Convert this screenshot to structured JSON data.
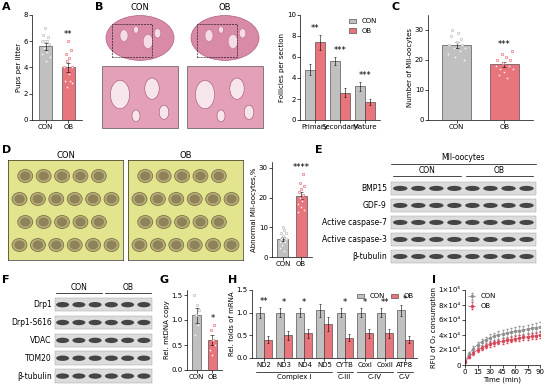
{
  "chart_data": [
    {
      "panel": "A",
      "type": "bar",
      "categories": [
        "CON",
        "OB"
      ],
      "values": [
        5.6,
        4.0
      ],
      "errors": [
        0.25,
        0.35
      ],
      "points": [
        [
          5,
          6,
          6.5,
          5.5,
          7,
          6,
          4.5,
          6,
          5.2,
          6.3,
          5.8,
          4.8
        ],
        [
          4,
          3,
          5,
          2.5,
          4.5,
          6,
          3.5,
          4.7,
          3,
          5.3,
          4,
          2.8
        ]
      ],
      "colors": [
        "#c0c0c0",
        "#e8747c"
      ],
      "ylabel": "Pups per litter",
      "ylim": [
        0,
        8
      ],
      "yticks": [
        0,
        2,
        4,
        6,
        8
      ],
      "significance": [
        null,
        "**"
      ]
    },
    {
      "panel": "B",
      "type": "bar",
      "categories": [
        "Primary",
        "Secondary",
        "Mature"
      ],
      "series": [
        {
          "name": "CON",
          "color": "#c0c0c0",
          "values": [
            4.8,
            5.6,
            3.2
          ],
          "errors": [
            0.5,
            0.4,
            0.4
          ]
        },
        {
          "name": "OB",
          "color": "#e8747c",
          "values": [
            7.4,
            2.6,
            1.7
          ],
          "errors": [
            0.7,
            0.4,
            0.3
          ]
        }
      ],
      "ylabel": "Follicles per section",
      "ylim": [
        0,
        10
      ],
      "yticks": [
        0,
        2,
        4,
        6,
        8,
        10
      ],
      "significance": [
        "**",
        "***",
        "***"
      ],
      "legend": "upper right"
    },
    {
      "panel": "C",
      "type": "bar",
      "categories": [
        "CON",
        "OB"
      ],
      "values": [
        25,
        18.5
      ],
      "errors": [
        1.0,
        0.8
      ],
      "points": [
        [
          22,
          25,
          28,
          30,
          24,
          21,
          26,
          29,
          23,
          27,
          25,
          20,
          24
        ],
        [
          18,
          20,
          15,
          17,
          22,
          19,
          16,
          21,
          14,
          18,
          20,
          23,
          17
        ]
      ],
      "colors": [
        "#c0c0c0",
        "#e8747c"
      ],
      "ylabel": "Number of MII-oocytes",
      "ylim": [
        0,
        35
      ],
      "yticks": [
        0,
        10,
        20,
        30
      ],
      "significance": [
        null,
        "***"
      ]
    },
    {
      "panel": "D",
      "type": "bar",
      "categories": [
        "CON",
        "OB"
      ],
      "values": [
        6.1,
        20.7
      ],
      "errors": [
        0.8,
        1.1
      ],
      "points": [
        [
          3,
          5,
          8,
          6,
          4,
          10,
          7,
          2,
          9,
          5,
          6,
          8
        ],
        [
          15,
          18,
          22,
          25,
          20,
          17,
          23,
          19,
          28,
          21,
          16,
          24
        ]
      ],
      "colors": [
        "#c0c0c0",
        "#e8747c"
      ],
      "ylabel": "Abnormal MII-oocytes,%",
      "ylim": [
        0,
        32
      ],
      "yticks": [
        0,
        10,
        20,
        30
      ],
      "significance": [
        null,
        "****"
      ]
    },
    {
      "panel": "G",
      "type": "bar",
      "categories": [
        "CON",
        "OB"
      ],
      "values": [
        1.1,
        0.6
      ],
      "errors": [
        0.15,
        0.1
      ],
      "points": [
        [
          1.5,
          0.7,
          1.1,
          1.3,
          0.9,
          1.2
        ],
        [
          0.4,
          0.8,
          0.3,
          0.6,
          0.9,
          0.5
        ]
      ],
      "colors": [
        "#c0c0c0",
        "#e8747c"
      ],
      "ylabel": "Rel. mtDNA copy",
      "ylim": [
        0,
        1.6
      ],
      "yticks": [
        {
          "value": 0,
          "label": "0.0"
        },
        0.5,
        1.0,
        1.5
      ],
      "significance": [
        null,
        "*"
      ]
    },
    {
      "panel": "H",
      "type": "bar",
      "categories": [
        "ND2",
        "ND3",
        "ND4",
        "ND5",
        "CYTB",
        "CoxI",
        "CoxII",
        "ATP8"
      ],
      "series": [
        {
          "name": "CON",
          "color": "#c0c0c0",
          "values": [
            1.0,
            1.0,
            1.0,
            1.05,
            1.0,
            1.0,
            1.0,
            1.05
          ],
          "errors": [
            0.12,
            0.1,
            0.1,
            0.15,
            0.1,
            0.1,
            0.1,
            0.12
          ]
        },
        {
          "name": "OB",
          "color": "#e8747c",
          "values": [
            0.4,
            0.5,
            0.55,
            0.75,
            0.45,
            0.55,
            0.55,
            0.4
          ],
          "errors": [
            0.08,
            0.1,
            0.1,
            0.15,
            0.08,
            0.1,
            0.1,
            0.08
          ]
        }
      ],
      "groups": [
        {
          "label": "Complex I",
          "categories": [
            "ND2",
            "ND3",
            "ND4",
            "ND5"
          ]
        },
        {
          "label": "C-III",
          "categories": [
            "CYTB"
          ]
        },
        {
          "label": "C-IV",
          "categories": [
            "CoxI",
            "CoxII"
          ]
        },
        {
          "label": "C-V",
          "categories": [
            "ATP8"
          ]
        }
      ],
      "ylabel": "Rel. folds of mRNA",
      "ylim": [
        0,
        1.5
      ],
      "yticks": [
        {
          "value": 0,
          "label": "0.0"
        },
        0.5,
        1.0,
        1.5
      ],
      "significance": [
        "**",
        "*",
        "*",
        null,
        "*",
        "*",
        "**",
        "*"
      ],
      "legend": "upper right"
    },
    {
      "panel": "I",
      "type": "line",
      "x": [
        0,
        5,
        10,
        15,
        20,
        25,
        30,
        35,
        40,
        45,
        50,
        55,
        60,
        65,
        70,
        75,
        80,
        85,
        90
      ],
      "series": [
        {
          "name": "CON",
          "color": "#909090",
          "marker": "o",
          "values": [
            5000,
            15000,
            22000,
            27000,
            31000,
            34000,
            36500,
            38500,
            40000,
            41500,
            43000,
            44000,
            45000,
            46000,
            47000,
            48000,
            49000,
            50000,
            51000
          ],
          "errors": [
            1000,
            2000,
            3000,
            3500,
            4000,
            4000,
            4500,
            4500,
            5000,
            5000,
            5000,
            5000,
            5500,
            5500,
            5500,
            5500,
            6000,
            6000,
            6000
          ]
        },
        {
          "name": "OB",
          "color": "#d9485a",
          "marker": "o",
          "values": [
            4000,
            11000,
            16000,
            20000,
            23000,
            25500,
            27500,
            29000,
            30500,
            32000,
            33000,
            34000,
            35000,
            36000,
            36800,
            37500,
            38200,
            39000,
            40000
          ],
          "errors": [
            800,
            1500,
            2000,
            2500,
            2500,
            3000,
            3000,
            3000,
            3000,
            3500,
            3500,
            3500,
            3500,
            3500,
            3500,
            4000,
            4000,
            4000,
            4000
          ]
        }
      ],
      "xlabel": "Time (min)",
      "ylabel": "RFU of O₂ consumption",
      "xlim": [
        0,
        90
      ],
      "xticks": [
        0,
        15,
        30,
        45,
        60,
        75,
        90
      ],
      "ylim": [
        0,
        100000
      ],
      "yticks": [
        0,
        {
          "value": 20000,
          "label": "2×10⁴"
        },
        {
          "value": 40000,
          "label": "4×10⁴"
        },
        {
          "value": 60000,
          "label": "6×10⁴"
        },
        {
          "value": 80000,
          "label": "8×10⁴"
        },
        {
          "value": 100000,
          "label": "1×10⁵"
        }
      ],
      "legend": "upper left"
    }
  ],
  "images": [
    {
      "panel": "B",
      "kind": "histology",
      "labels": [
        "CON",
        "OB"
      ]
    },
    {
      "panel": "D",
      "kind": "oocytes",
      "labels": [
        "CON",
        "OB"
      ]
    }
  ],
  "blots": [
    {
      "panel": "E",
      "header": "MII-oocytes",
      "groups": [
        "CON",
        "OB"
      ],
      "lanes_per_group": 4,
      "rows": [
        "BMP15",
        "GDF-9",
        "Active caspase-7",
        "Active caspase-3",
        "β-tubulin"
      ]
    },
    {
      "panel": "F",
      "groups": [
        "CON",
        "OB"
      ],
      "lanes_per_group": 3,
      "rows": [
        "Drp1",
        "Drp1-S616",
        "VDAC",
        "TOM20",
        "β-tubulin"
      ]
    }
  ]
}
